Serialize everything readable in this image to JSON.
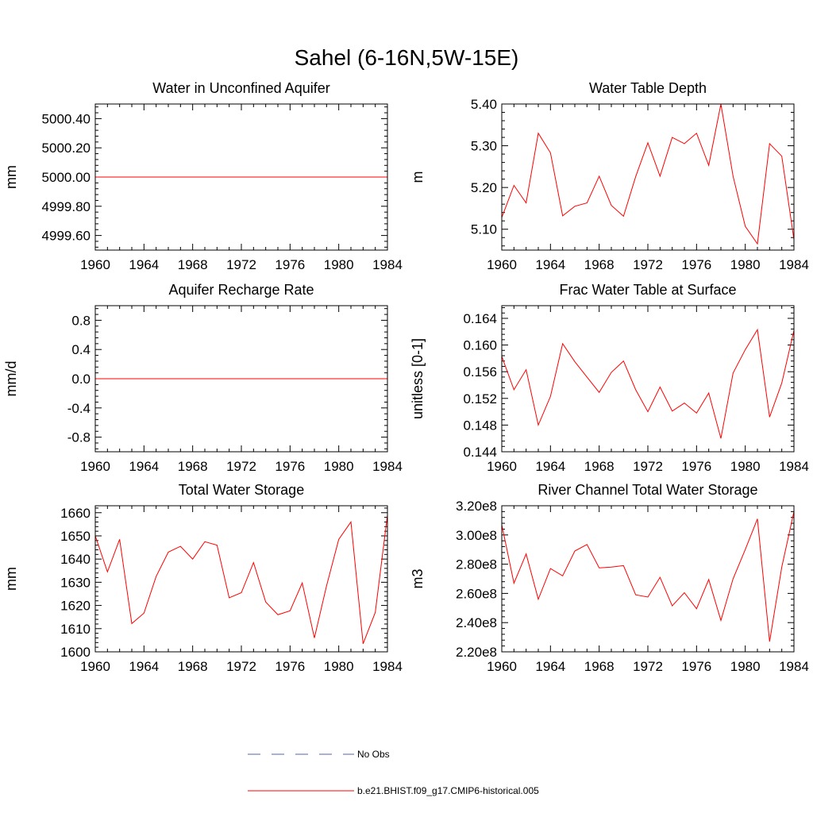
{
  "figure": {
    "title": "Sahel (6-16N,5W-15E)"
  },
  "chart_data": [
    {
      "type": "line",
      "title": "Water in Unconfined Aquifer",
      "ylabel": "mm",
      "xlim": [
        1960,
        1984
      ],
      "ylim": [
        4999.5,
        5000.5
      ],
      "xticks": [
        "1960",
        "1964",
        "1968",
        "1972",
        "1976",
        "1980",
        "1984"
      ],
      "yticks": [
        4999.6,
        4999.8,
        5000.0,
        5000.2,
        5000.4
      ],
      "ytick_labels": [
        "4999.60",
        "4999.80",
        "5000.00",
        "5000.20",
        "5000.40"
      ],
      "grid": false,
      "series": [
        {
          "color": "#ff0000",
          "x": [
            1960,
            1961,
            1962,
            1963,
            1964,
            1965,
            1966,
            1967,
            1968,
            1969,
            1970,
            1971,
            1972,
            1973,
            1974,
            1975,
            1976,
            1977,
            1978,
            1979,
            1980,
            1981,
            1982,
            1983,
            1984
          ],
          "values": [
            5000.0,
            5000.0,
            5000.0,
            5000.0,
            5000.0,
            5000.0,
            5000.0,
            5000.0,
            5000.0,
            5000.0,
            5000.0,
            5000.0,
            5000.0,
            5000.0,
            5000.0,
            5000.0,
            5000.0,
            5000.0,
            5000.0,
            5000.0,
            5000.0,
            5000.0,
            5000.0,
            5000.0,
            5000.0
          ]
        }
      ]
    },
    {
      "type": "line",
      "title": "Water Table Depth",
      "ylabel": "m",
      "xlim": [
        1960,
        1984
      ],
      "ylim": [
        5.05,
        5.4
      ],
      "xticks": [
        "1960",
        "1964",
        "1968",
        "1972",
        "1976",
        "1980",
        "1984"
      ],
      "yticks": [
        5.1,
        5.2,
        5.3,
        5.4
      ],
      "ytick_labels": [
        "5.10",
        "5.20",
        "5.30",
        "5.40"
      ],
      "grid": false,
      "series": [
        {
          "color": "#ff0000",
          "x": [
            1960,
            1961,
            1962,
            1963,
            1964,
            1965,
            1966,
            1967,
            1968,
            1969,
            1970,
            1971,
            1972,
            1973,
            1974,
            1975,
            1976,
            1977,
            1978,
            1979,
            1980,
            1981,
            1982,
            1983,
            1984
          ],
          "values": [
            5.128,
            5.205,
            5.163,
            5.33,
            5.283,
            5.132,
            5.155,
            5.163,
            5.227,
            5.157,
            5.131,
            5.226,
            5.307,
            5.227,
            5.32,
            5.305,
            5.33,
            5.253,
            5.4,
            5.227,
            5.107,
            5.065,
            5.305,
            5.275,
            5.075
          ]
        }
      ]
    },
    {
      "type": "line",
      "title": "Aquifer Recharge Rate",
      "ylabel": "mm/d",
      "xlim": [
        1960,
        1984
      ],
      "ylim": [
        -1.0,
        1.0
      ],
      "xticks": [
        "1960",
        "1964",
        "1968",
        "1972",
        "1976",
        "1980",
        "1984"
      ],
      "yticks": [
        -0.8,
        -0.4,
        0.0,
        0.4,
        0.8
      ],
      "ytick_labels": [
        "-0.8",
        "-0.4",
        "0.0",
        "0.4",
        "0.8"
      ],
      "grid": false,
      "series": [
        {
          "color": "#ff0000",
          "x": [
            1960,
            1961,
            1962,
            1963,
            1964,
            1965,
            1966,
            1967,
            1968,
            1969,
            1970,
            1971,
            1972,
            1973,
            1974,
            1975,
            1976,
            1977,
            1978,
            1979,
            1980,
            1981,
            1982,
            1983,
            1984
          ],
          "values": [
            0.0,
            0.0,
            0.0,
            0.0,
            0.0,
            0.0,
            0.0,
            0.0,
            0.0,
            0.0,
            0.0,
            0.0,
            0.0,
            0.0,
            0.0,
            0.0,
            0.0,
            0.0,
            0.0,
            0.0,
            0.0,
            0.0,
            0.0,
            0.0,
            0.0
          ]
        }
      ]
    },
    {
      "type": "line",
      "title": "Frac Water Table at Surface",
      "ylabel": "unitless [0-1]",
      "xlim": [
        1960,
        1984
      ],
      "ylim": [
        0.144,
        0.1659
      ],
      "xticks": [
        "1960",
        "1964",
        "1968",
        "1972",
        "1976",
        "1980",
        "1984"
      ],
      "yticks": [
        0.144,
        0.148,
        0.152,
        0.156,
        0.16,
        0.164
      ],
      "ytick_labels": [
        "0.144",
        "0.148",
        "0.152",
        "0.156",
        "0.160",
        "0.164"
      ],
      "grid": false,
      "series": [
        {
          "color": "#ff0000",
          "x": [
            1960,
            1961,
            1962,
            1963,
            1964,
            1965,
            1966,
            1967,
            1968,
            1969,
            1970,
            1971,
            1972,
            1973,
            1974,
            1975,
            1976,
            1977,
            1978,
            1979,
            1980,
            1981,
            1982,
            1983,
            1984
          ],
          "values": [
            0.1583,
            0.1533,
            0.1563,
            0.148,
            0.1523,
            0.1602,
            0.1575,
            0.1552,
            0.1529,
            0.1559,
            0.1576,
            0.1533,
            0.15,
            0.1537,
            0.1501,
            0.1513,
            0.1498,
            0.1528,
            0.146,
            0.1558,
            0.1593,
            0.1623,
            0.1492,
            0.1543,
            0.1622
          ]
        }
      ]
    },
    {
      "type": "line",
      "title": "Total Water Storage",
      "ylabel": "mm",
      "xlim": [
        1960,
        1984
      ],
      "ylim": [
        1600,
        1663
      ],
      "xticks": [
        "1960",
        "1964",
        "1968",
        "1972",
        "1976",
        "1980",
        "1984"
      ],
      "yticks": [
        1600,
        1610,
        1620,
        1630,
        1640,
        1650,
        1660
      ],
      "ytick_labels": [
        "1600",
        "1610",
        "1620",
        "1630",
        "1640",
        "1650",
        "1660"
      ],
      "grid": false,
      "series": [
        {
          "color": "#ff0000",
          "x": [
            1960,
            1961,
            1962,
            1963,
            1964,
            1965,
            1966,
            1967,
            1968,
            1969,
            1970,
            1971,
            1972,
            1973,
            1974,
            1975,
            1976,
            1977,
            1978,
            1979,
            1980,
            1981,
            1982,
            1983,
            1984
          ],
          "values": [
            1650,
            1634.5,
            1648.5,
            1612.2,
            1616.7,
            1632.5,
            1643,
            1645.5,
            1640,
            1647.5,
            1646,
            1623.3,
            1625.5,
            1638.5,
            1621.5,
            1616,
            1617.7,
            1629.7,
            1606,
            1628.5,
            1648.5,
            1656,
            1603.5,
            1617,
            1659
          ]
        }
      ]
    },
    {
      "type": "line",
      "title": "River Channel Total Water Storage",
      "ylabel": "m3",
      "xlim": [
        1960,
        1984
      ],
      "ylim": [
        220000000,
        320000000
      ],
      "xticks": [
        "1960",
        "1964",
        "1968",
        "1972",
        "1976",
        "1980",
        "1984"
      ],
      "yticks": [
        220000000,
        240000000,
        260000000,
        280000000,
        300000000,
        320000000
      ],
      "ytick_labels": [
        "2.20e8",
        "2.40e8",
        "2.60e8",
        "2.80e8",
        "3.00e8",
        "3.20e8"
      ],
      "grid": false,
      "series": [
        {
          "color": "#ff0000",
          "x": [
            1960,
            1961,
            1962,
            1963,
            1964,
            1965,
            1966,
            1967,
            1968,
            1969,
            1970,
            1971,
            1972,
            1973,
            1974,
            1975,
            1976,
            1977,
            1978,
            1979,
            1980,
            1981,
            1982,
            1983,
            1984
          ],
          "values": [
            307000000,
            267000000,
            287000000,
            256000000,
            277000000,
            272000000,
            289000000,
            293500000,
            277500000,
            278000000,
            279000000,
            259000000,
            257500000,
            271000000,
            251500000,
            260500000,
            249500000,
            269500000,
            241500000,
            270000000,
            290000000,
            311000000,
            227000000,
            278000000,
            316000000
          ]
        }
      ]
    }
  ],
  "legend": {
    "placement": "bottom-center",
    "items": [
      {
        "label": "No Obs",
        "color": "#5566aa",
        "style": "dashed"
      },
      {
        "label": "b.e21.BHIST.f09_g17.CMIP6-historical.005",
        "color": "#ff0000",
        "style": "solid"
      }
    ]
  }
}
